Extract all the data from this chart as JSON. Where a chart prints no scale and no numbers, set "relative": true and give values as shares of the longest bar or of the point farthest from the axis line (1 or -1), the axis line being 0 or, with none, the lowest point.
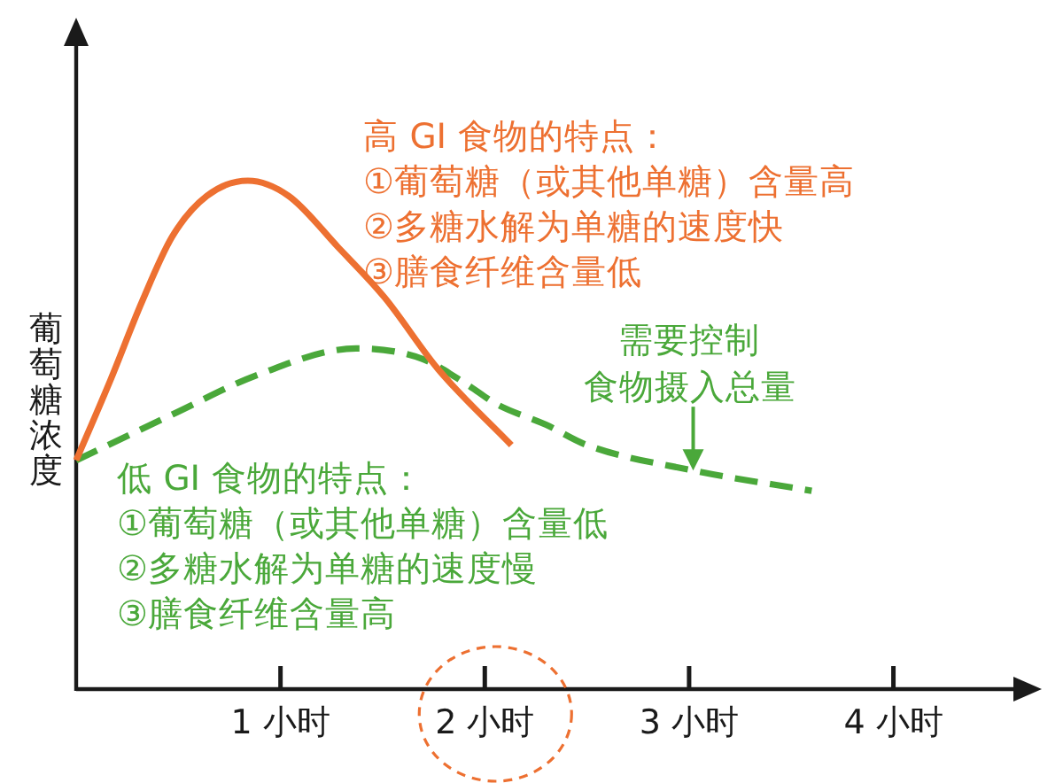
{
  "chart_data": {
    "type": "line",
    "relative": true,
    "ylabel": "葡萄糖浓度",
    "xlim": [
      0,
      4.7
    ],
    "xticks": [
      {
        "value": 1,
        "label": "1 小时"
      },
      {
        "value": 2,
        "label": "2 小时"
      },
      {
        "value": 3,
        "label": "3 小时"
      },
      {
        "value": 4,
        "label": "4 小时"
      }
    ],
    "tick_labels": "x",
    "series": [
      {
        "color": "#ed7031",
        "line_style": "solid",
        "x": [
          0,
          0.17,
          0.32,
          0.47,
          0.64,
          0.84,
          1.04,
          1.28,
          1.51,
          1.77,
          2.13
        ],
        "values": [
          0.45,
          0.61,
          0.76,
          0.89,
          0.97,
          1,
          0.97,
          0.87,
          0.77,
          0.63,
          0.48
        ]
      },
      {
        "color": "#4aa83a",
        "line_style": "dashed",
        "x": [
          0,
          0.47,
          0.9,
          1.37,
          1.69,
          1.91,
          2.06,
          2.3,
          2.5,
          3.02,
          3.6
        ],
        "values": [
          0.45,
          0.54,
          0.62,
          0.67,
          0.65,
          0.6,
          0.56,
          0.52,
          0.48,
          0.43,
          0.39
        ]
      }
    ],
    "annotations": [
      "高 GI 食物的特点：\n①葡萄糖（或其他单糖）含量高\n②多糖水解为单糖的速度快\n③膳食纤维含量低",
      "低 GI 食物的特点：\n①葡萄糖（或其他单糖）含量低\n②多糖水解为单糖的速度慢\n③膳食纤维含量高",
      "需要控制",
      {
        "text": "食物摄入总量",
        "x": 3.02,
        "y": 0.43
      }
    ]
  }
}
